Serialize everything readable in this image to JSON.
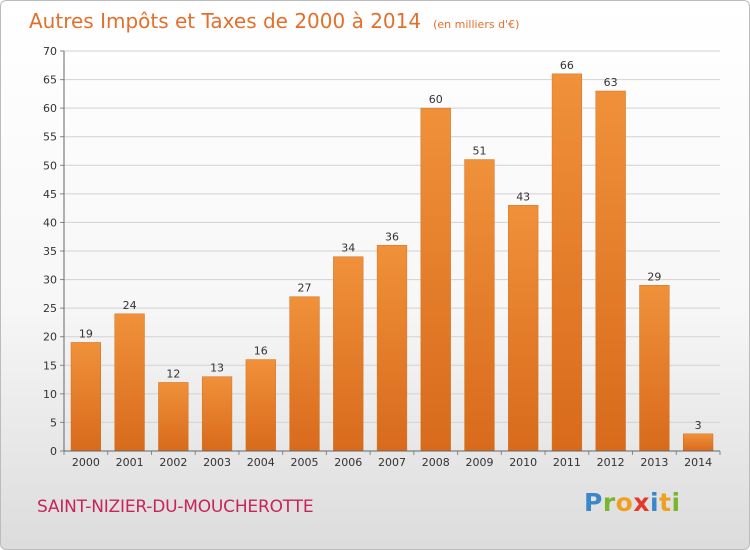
{
  "chart_data": {
    "type": "bar",
    "title": "Autres Impôts et Taxes de 2000 à 2014",
    "subtitle": "(en milliers d'€)",
    "categories": [
      "2000",
      "2001",
      "2002",
      "2003",
      "2004",
      "2005",
      "2006",
      "2007",
      "2008",
      "2009",
      "2010",
      "2011",
      "2012",
      "2013",
      "2014"
    ],
    "values": [
      19,
      24,
      12,
      13,
      16,
      27,
      34,
      36,
      60,
      51,
      43,
      66,
      63,
      29,
      3
    ],
    "ylim": [
      0,
      70
    ],
    "yticks": [
      0,
      5,
      10,
      15,
      20,
      25,
      30,
      35,
      40,
      45,
      50,
      55,
      60,
      65,
      70
    ],
    "grid": true,
    "bar_color": "#f0913a",
    "bar_color_dark": "#d86a1c"
  },
  "commune": "SAINT-NIZIER-DU-MOUCHEROTTE",
  "logo": {
    "letters": [
      "P",
      "r",
      "o",
      "x",
      "i",
      "t",
      "i"
    ],
    "colors": [
      "#3a87c9",
      "#7ab62d",
      "#f0a020",
      "#e23a2a",
      "#3a87c9",
      "#f0a020",
      "#7ab62d"
    ]
  }
}
